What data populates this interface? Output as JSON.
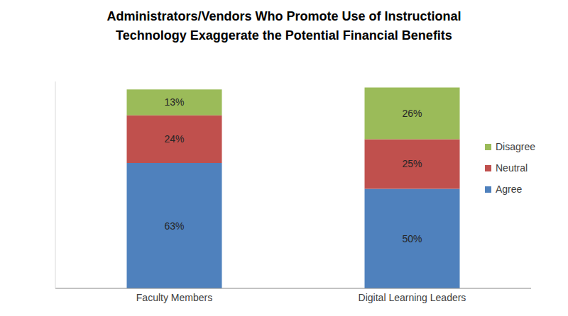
{
  "chart_data": {
    "type": "bar",
    "title": "Administrators/Vendors Who Promote Use of Instructional Technology Exaggerate the Potential Financial Benefits",
    "categories": [
      "Faculty Members",
      "Digital Learning Leaders"
    ],
    "series": [
      {
        "name": "Agree",
        "color": "#4F81BD",
        "values": [
          63,
          50
        ],
        "value_labels": [
          "63%",
          "50%"
        ]
      },
      {
        "name": "Neutral",
        "color": "#C0504D",
        "values": [
          24,
          25
        ],
        "value_labels": [
          "24%",
          "25%"
        ]
      },
      {
        "name": "Disagree",
        "color": "#9BBB59",
        "values": [
          13,
          26
        ],
        "value_labels": [
          "13%",
          "26%"
        ]
      }
    ],
    "stacked": true,
    "data_labels": true,
    "ylim": [
      0,
      104
    ],
    "tick_labels": "x",
    "legend": "right",
    "grid": false
  }
}
